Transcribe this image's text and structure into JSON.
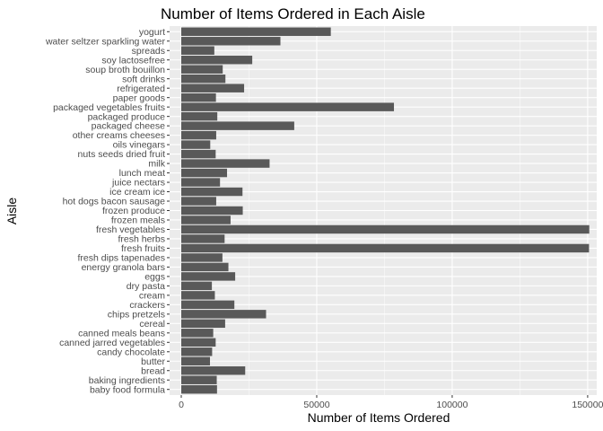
{
  "chart_data": {
    "type": "bar",
    "orientation": "horizontal",
    "title": "Number of Items Ordered in Each Aisle",
    "xlabel": "Number of Items Ordered",
    "ylabel": "Aisle",
    "xlim": [
      0,
      155000
    ],
    "x_ticks": [
      0,
      50000,
      100000,
      150000
    ],
    "x_tick_labels": [
      "0",
      "50000",
      "100000",
      "150000"
    ],
    "grid": true,
    "colors": {
      "panel_background": "#ebebeb",
      "grid_major": "#ffffff",
      "bar": "#595959",
      "tick_text": "#4d4d4d"
    },
    "categories": [
      "baby food formula",
      "baking ingredients",
      "bread",
      "butter",
      "candy chocolate",
      "canned jarred vegetables",
      "canned meals beans",
      "cereal",
      "chips pretzels",
      "crackers",
      "cream",
      "dry pasta",
      "eggs",
      "energy granola bars",
      "fresh dips tapenades",
      "fresh fruits",
      "fresh herbs",
      "fresh vegetables",
      "frozen meals",
      "frozen produce",
      "hot dogs bacon sausage",
      "ice cream ice",
      "juice nectars",
      "lunch meat",
      "milk",
      "nuts seeds dried fruit",
      "oils vinegars",
      "other creams cheeses",
      "packaged cheese",
      "packaged produce",
      "packaged vegetables fruits",
      "paper goods",
      "refrigerated",
      "soft drinks",
      "soup broth bouillon",
      "soy lactosefree",
      "spreads",
      "water seltzer sparkling water",
      "yogurt"
    ],
    "values": [
      13200,
      13100,
      23600,
      10600,
      11400,
      12700,
      11800,
      16200,
      31300,
      19600,
      12400,
      11300,
      19900,
      17400,
      15200,
      150500,
      16000,
      150600,
      18200,
      22700,
      12900,
      22600,
      14300,
      16900,
      32600,
      12700,
      10700,
      12900,
      41700,
      13300,
      78500,
      12800,
      23200,
      16300,
      15300,
      26200,
      12200,
      36600,
      55200
    ]
  }
}
